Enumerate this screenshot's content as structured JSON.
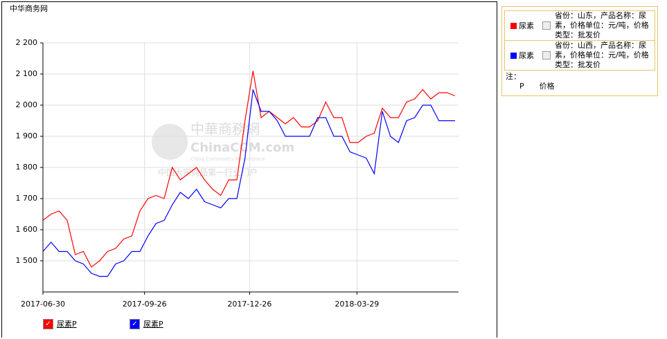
{
  "header": {
    "site": "中华商务网"
  },
  "watermark": {
    "brand": "中華商務網",
    "domain": "ChinaCCM.com",
    "tagline": "China Commodity Marketplace",
    "slogan": "中国大宗商品第一行业门户"
  },
  "chart_data": {
    "type": "line",
    "x": [
      "2017-06-30",
      "2017-07-07",
      "2017-07-14",
      "2017-07-21",
      "2017-07-28",
      "2017-08-04",
      "2017-08-11",
      "2017-08-18",
      "2017-08-25",
      "2017-09-01",
      "2017-09-08",
      "2017-09-15",
      "2017-09-22",
      "2017-09-29",
      "2017-10-06",
      "2017-10-13",
      "2017-10-20",
      "2017-10-27",
      "2017-11-03",
      "2017-11-10",
      "2017-11-17",
      "2017-11-24",
      "2017-12-01",
      "2017-12-08",
      "2017-12-15",
      "2017-12-22",
      "2017-12-29",
      "2018-01-05",
      "2018-01-12",
      "2018-01-19",
      "2018-01-26",
      "2018-02-02",
      "2018-02-09",
      "2018-02-16",
      "2018-02-23",
      "2018-03-02",
      "2018-03-09",
      "2018-03-16",
      "2018-03-23",
      "2018-03-30",
      "2018-04-06",
      "2018-04-13",
      "2018-04-20",
      "2018-04-27",
      "2018-05-04",
      "2018-05-11",
      "2018-05-18",
      "2018-05-25",
      "2018-06-01",
      "2018-06-08",
      "2018-06-15",
      "2018-06-22"
    ],
    "series": [
      {
        "name": "尿素",
        "color": "#ff0000",
        "description": "省份：山东，产品名称：尿素，价格单位：元/吨，价格类型：批发价",
        "toggle": "尿素P",
        "values": [
          1630,
          1650,
          1660,
          1630,
          1520,
          1530,
          1480,
          1500,
          1530,
          1540,
          1570,
          1580,
          1660,
          1700,
          1710,
          1700,
          1800,
          1760,
          1780,
          1800,
          1760,
          1730,
          1710,
          1760,
          1760,
          1950,
          2110,
          1960,
          1980,
          1960,
          1940,
          1960,
          1930,
          1930,
          1950,
          2010,
          1960,
          1960,
          1880,
          1880,
          1900,
          1910,
          1990,
          1960,
          1960,
          2010,
          2020,
          2050,
          2020,
          2040,
          2040,
          2030
        ]
      },
      {
        "name": "尿素",
        "color": "#0000ff",
        "description": "省份：山西，产品名称：尿素，价格单位：元/吨，价格类型：批发价",
        "toggle": "尿素P",
        "values": [
          1530,
          1560,
          1530,
          1530,
          1500,
          1490,
          1460,
          1450,
          1450,
          1490,
          1500,
          1530,
          1530,
          1580,
          1620,
          1630,
          1680,
          1720,
          1700,
          1730,
          1690,
          1680,
          1670,
          1700,
          1700,
          1830,
          2050,
          1980,
          1980,
          1950,
          1900,
          1900,
          1900,
          1900,
          1960,
          1960,
          1900,
          1900,
          1850,
          1840,
          1830,
          1780,
          1980,
          1900,
          1880,
          1950,
          1960,
          2000,
          2000,
          1950,
          1950,
          1950
        ]
      }
    ],
    "xlim": [
      "2017-06-30",
      "2018-06-25"
    ],
    "xticks": [
      "2017-06-30",
      "2017-09-26",
      "2017-12-26",
      "2018-03-29"
    ],
    "ylim": [
      1400,
      2200
    ],
    "yticks": [
      {
        "value": 1500,
        "label": "1 500"
      },
      {
        "value": 1600,
        "label": "1 600"
      },
      {
        "value": 1700,
        "label": "1 700"
      },
      {
        "value": 1800,
        "label": "1 800"
      },
      {
        "value": 1900,
        "label": "1 900"
      },
      {
        "value": 2000,
        "label": "2 000"
      },
      {
        "value": 2100,
        "label": "2 100"
      },
      {
        "value": 2200,
        "label": "2 200"
      }
    ],
    "grid": true
  },
  "note": {
    "title": "注：",
    "key": "P",
    "meaning": "价格"
  }
}
